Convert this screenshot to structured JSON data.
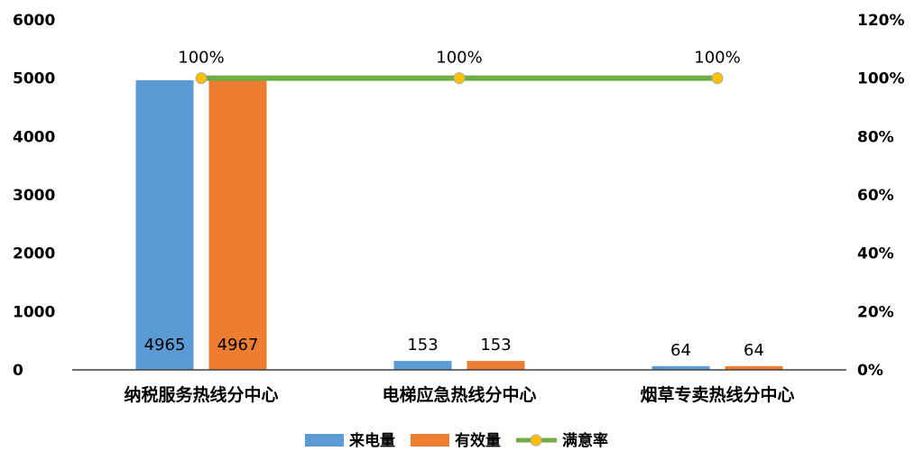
{
  "chart_data": {
    "type": "bar",
    "categories": [
      "纳税服务热线分中心",
      "电梯应急热线分中心",
      "烟草专卖热线分中心"
    ],
    "series": [
      {
        "name": "来电量",
        "type": "bar",
        "axis": "left",
        "color": "#5B9BD5",
        "values": [
          4965,
          153,
          64
        ],
        "labels": [
          "4965",
          "153",
          "64"
        ]
      },
      {
        "name": "有效量",
        "type": "bar",
        "axis": "left",
        "color": "#ED7D31",
        "values": [
          4967,
          153,
          64
        ],
        "labels": [
          "4967",
          "153",
          "64"
        ]
      },
      {
        "name": "满意率",
        "type": "line",
        "axis": "right",
        "color": "#70AD47",
        "marker_color": "#FFC000",
        "values": [
          1.0,
          1.0,
          1.0
        ],
        "labels": [
          "100%",
          "100%",
          "100%"
        ]
      }
    ],
    "y_left": {
      "ylim": [
        0,
        6000
      ],
      "ticks": [
        "0",
        "1000",
        "2000",
        "3000",
        "4000",
        "5000",
        "6000"
      ]
    },
    "y_right": {
      "ylim": [
        0,
        1.2
      ],
      "ticks": [
        "0%",
        "20%",
        "40%",
        "60%",
        "80%",
        "100%",
        "120%"
      ]
    },
    "grid": false,
    "legend_position": "bottom"
  }
}
